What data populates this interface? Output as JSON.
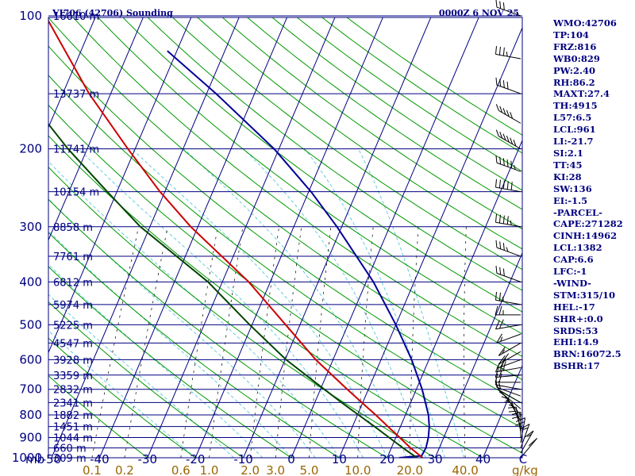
{
  "header": {
    "station": "VI706 (42706) Sounding",
    "datetime": "0000Z  6 NOV 25"
  },
  "stats": [
    "WMO:42706",
    "TP:104",
    "FRZ:816",
    "WB0:829",
    "PW:2.40",
    "RH:86.2",
    "MAXT:27.4",
    "TH:4915",
    "L57:6.5",
    "LCL:961",
    "LI:-21.7",
    "SI:2.1",
    "TT:45",
    "KI:28",
    "SW:136",
    "EI:-1.5",
    "-PARCEL-",
    "CAPE:271282",
    "CINH:14962",
    "LCL:1382",
    "CAP:6.6",
    "LFC:-1",
    "-WIND-",
    "STM:315/10",
    "HEL:-17",
    "SHR+:0.0",
    "SRDS:53",
    "EHI:14.9",
    "BRN:16072.5",
    "BSHR:17"
  ],
  "colors": {
    "frame": "#000080",
    "isobar": "#000080",
    "isotherm": "#000080",
    "dry_adiabat": "#009900",
    "moist_adiabat": "#66ccdd",
    "mixing_ratio": "#000000",
    "temperature": "#cc0000",
    "dewpoint": "#004400",
    "parcel": "#000099",
    "mix_labels": "#996600",
    "barbs": "#000000"
  },
  "chart_data": {
    "type": "skew-t",
    "title": "VI706 (42706) Sounding",
    "time": "0000Z  6 NOV 25",
    "y_axis_label": "mb",
    "y_axis": "pressure (hPa, log scale)",
    "x_axis": "temperature (°C, skewed)",
    "pressure_range": [
      1000,
      100
    ],
    "temp_range_at_1000mb": [
      -50,
      50
    ],
    "pressure_ticks": [
      100,
      200,
      300,
      400,
      500,
      600,
      700,
      800,
      900,
      1000
    ],
    "isobars": [
      {
        "p": 100,
        "height": "16610 m"
      },
      {
        "p": 150,
        "height": "13737 m"
      },
      {
        "p": 200,
        "height": "11741 m"
      },
      {
        "p": 250,
        "height": "10154 m"
      },
      {
        "p": 300,
        "height": "8858 m"
      },
      {
        "p": 350,
        "height": "7761 m"
      },
      {
        "p": 400,
        "height": "6812 m"
      },
      {
        "p": 450,
        "height": "5974 m"
      },
      {
        "p": 500,
        "height": "5225 m"
      },
      {
        "p": 550,
        "height": "4547 m"
      },
      {
        "p": 600,
        "height": "3928 m"
      },
      {
        "p": 650,
        "height": "3359 m"
      },
      {
        "p": 700,
        "height": "2832 m"
      },
      {
        "p": 750,
        "height": "2341 m"
      },
      {
        "p": 800,
        "height": "1882 m"
      },
      {
        "p": 850,
        "height": "1451 m"
      },
      {
        "p": 900,
        "height": "1044 m"
      },
      {
        "p": 950,
        "height": "660 m"
      },
      {
        "p": 1000,
        "height": "309 m"
      }
    ],
    "temp_ticks": [
      "-50",
      "-40",
      "-30",
      "-20",
      "-10",
      "0",
      "10",
      "20",
      "30",
      "40"
    ],
    "temp_tick_values": [
      -50,
      -40,
      -30,
      -20,
      -10,
      0,
      10,
      20,
      30,
      40
    ],
    "mix_ratio_unit": "g/kg",
    "mix_ratio_labels": [
      "0.1",
      "0.2",
      "0.6",
      "1.0",
      "2.0",
      "3.0",
      "5.0",
      "10.0",
      "20.0",
      "40.0"
    ],
    "mix_ratio_values": [
      0.1,
      0.2,
      0.6,
      1.0,
      2.0,
      3.0,
      5.0,
      10.0,
      20.0,
      40.0
    ],
    "isotherm_range": [
      -140,
      50
    ],
    "dry_adiabats_theta_c": [
      -30,
      -20,
      -10,
      0,
      10,
      20,
      30,
      40,
      50,
      60,
      70,
      80,
      90,
      100,
      110,
      120,
      130,
      140,
      150,
      160,
      170,
      180,
      190,
      200
    ],
    "moist_adiabats_thetaw_c": [
      -20,
      -12,
      -6,
      0,
      5,
      10,
      15,
      20,
      24,
      28,
      32,
      36
    ],
    "temperature": {
      "p": [
        1000,
        950,
        900,
        850,
        800,
        750,
        700,
        600,
        500,
        400,
        300,
        250,
        200,
        150,
        100
      ],
      "t": [
        27.4,
        24.0,
        20.8,
        17.4,
        13.8,
        9.8,
        5.6,
        -3.6,
        -13.0,
        -24.5,
        -41.5,
        -51.0,
        -61.5,
        -74.5,
        -90.5
      ]
    },
    "dewpoint": {
      "p": [
        1000,
        950,
        900,
        850,
        800,
        750,
        700,
        600,
        500,
        400,
        300,
        250,
        200,
        150,
        100
      ],
      "td": [
        26.2,
        22.4,
        18.6,
        14.6,
        10.2,
        5.6,
        0.8,
        -9.8,
        -20.5,
        -33.0,
        -52.0,
        -62.0,
        -74.0,
        -88.0,
        -104.0
      ]
    },
    "parcel": {
      "p": [
        1000,
        990,
        950,
        900,
        850,
        800,
        700,
        600,
        500,
        400,
        300,
        250,
        200,
        150,
        120
      ],
      "t": [
        22.5,
        27.0,
        27.2,
        26.8,
        26.0,
        24.8,
        21.2,
        16.4,
        10.0,
        1.5,
        -11.0,
        -19.5,
        -31.0,
        -48.0,
        -62.0
      ]
    },
    "wind": {
      "p": [
        1000,
        975,
        950,
        925,
        900,
        875,
        850,
        825,
        800,
        775,
        750,
        725,
        700,
        675,
        650,
        625,
        600,
        575,
        550,
        525,
        500,
        475,
        450,
        400,
        350,
        300,
        250,
        225,
        200,
        175,
        150,
        125,
        100
      ],
      "dir": [
        140,
        150,
        160,
        170,
        180,
        190,
        200,
        210,
        220,
        230,
        240,
        250,
        260,
        270,
        275,
        280,
        290,
        300,
        300,
        290,
        280,
        270,
        260,
        250,
        250,
        260,
        260,
        250,
        240,
        240,
        250,
        260,
        250
      ],
      "spd": [
        10,
        15,
        15,
        20,
        20,
        20,
        15,
        15,
        10,
        10,
        10,
        15,
        15,
        20,
        20,
        25,
        25,
        20,
        15,
        15,
        20,
        25,
        25,
        30,
        35,
        45,
        50,
        55,
        60,
        50,
        40,
        35,
        30
      ]
    }
  }
}
